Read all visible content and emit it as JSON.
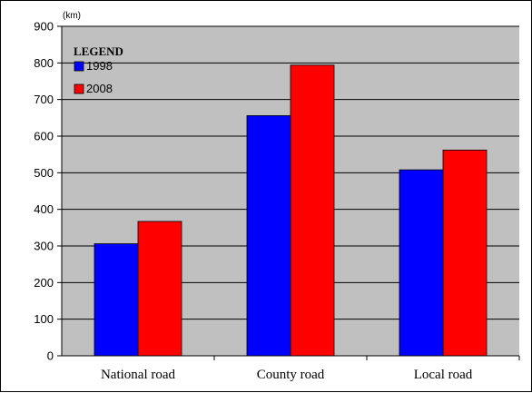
{
  "chart_data": {
    "type": "bar",
    "title": "",
    "xlabel": "",
    "ylabel": "",
    "unit_label": "(km)",
    "legend_title": "LEGEND",
    "legend_position": "top-left",
    "grid": true,
    "ylim": [
      0,
      900
    ],
    "yticks": [
      0,
      100,
      200,
      300,
      400,
      500,
      600,
      700,
      800,
      900
    ],
    "categories": [
      "National road",
      "County road",
      "Local road"
    ],
    "series": [
      {
        "name": "1998",
        "color": "#0000ff",
        "values": [
          306,
          656,
          508
        ]
      },
      {
        "name": "2008",
        "color": "#ff0000",
        "values": [
          367,
          794,
          562
        ]
      }
    ],
    "plot_background": "#c0c0c0"
  }
}
